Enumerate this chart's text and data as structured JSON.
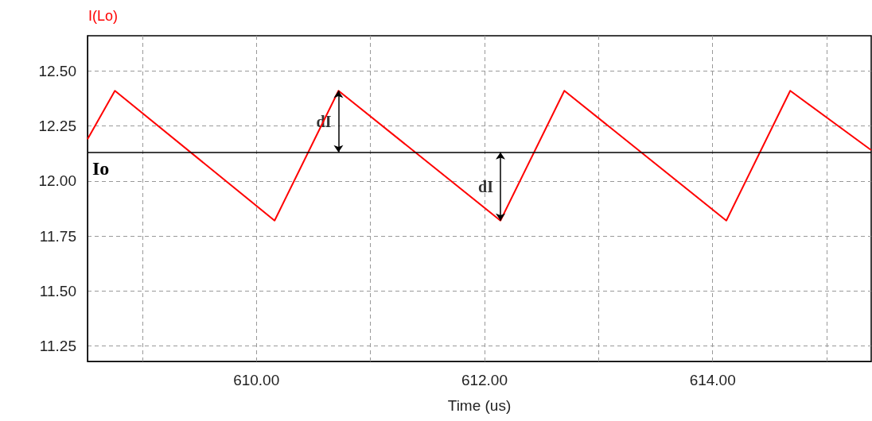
{
  "chart_data": {
    "type": "line",
    "title": "I(Lo)",
    "xlabel": "Time (us)",
    "x": [
      608.52,
      608.76,
      610.16,
      610.72,
      612.14,
      612.7,
      614.12,
      614.68,
      615.39
    ],
    "series": [
      {
        "color": "#ff0000",
        "values": [
          12.19,
          12.41,
          11.82,
          12.41,
          11.82,
          12.41,
          11.82,
          12.41,
          12.14
        ]
      }
    ],
    "xlim": [
      608.52,
      615.39
    ],
    "xticks": [
      {
        "value": 609,
        "label": null
      },
      {
        "value": 610,
        "label": "610.00"
      },
      {
        "value": 611,
        "label": null
      },
      {
        "value": 612,
        "label": "612.00"
      },
      {
        "value": 613,
        "label": null
      },
      {
        "value": 614,
        "label": "614.00"
      },
      {
        "value": 615,
        "label": null
      }
    ],
    "ylim": [
      11.18,
      12.66
    ],
    "yticks": [
      {
        "value": 11.25,
        "label": "11.25"
      },
      {
        "value": 11.5,
        "label": "11.50"
      },
      {
        "value": 11.75,
        "label": "11.75"
      },
      {
        "value": 12,
        "label": "12.00"
      },
      {
        "value": 12.25,
        "label": "12.25"
      },
      {
        "value": 12.5,
        "label": "12.50"
      }
    ],
    "ref_lines": [
      {
        "axis": "y",
        "value": 12.13,
        "label": "Io",
        "color": "#000000",
        "line_style": "solid"
      }
    ],
    "annotations": [
      {
        "text": "dI",
        "x": 610.72,
        "y": 12.41
      },
      {
        "text": "dI",
        "x": 612.14,
        "y": 11.82
      }
    ],
    "grid": true,
    "marker": "none",
    "line_style": "solid"
  }
}
